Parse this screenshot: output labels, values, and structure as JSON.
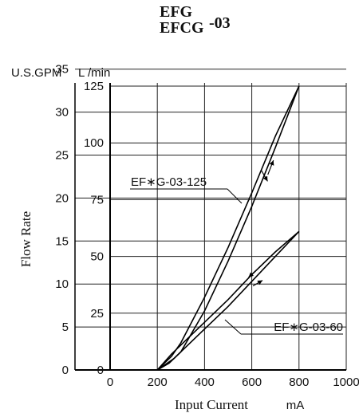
{
  "header": {
    "line1": "EFG",
    "line2": "EFCG",
    "suffix": "-03"
  },
  "chart_data": {
    "type": "line",
    "title": "",
    "xlabel": "Input Current",
    "xunit": "mA",
    "ylabel": "Flow Rate",
    "y_left_unit": "U.S.GPM",
    "y_right_unit": "L /min",
    "xlim": [
      0,
      1000
    ],
    "ylim_lpm": [
      0,
      125
    ],
    "x_ticks": [
      "0",
      "200",
      "400",
      "600",
      "800",
      "1000"
    ],
    "y_ticks_lpm": [
      "0",
      "25",
      "50",
      "75",
      "100",
      "125"
    ],
    "y_ticks_gpm": [
      "0",
      "5",
      "10",
      "15",
      "20",
      "25",
      "30",
      "35"
    ],
    "grid": true,
    "series": [
      {
        "name": "EF∗G-03-125",
        "increasing": {
          "x": [
            200,
            250,
            300,
            400,
            500,
            600,
            700,
            800
          ],
          "y": [
            0,
            3,
            8,
            26,
            48,
            72,
            98,
            125
          ]
        },
        "decreasing": {
          "x": [
            200,
            260,
            300,
            400,
            500,
            600,
            700,
            800
          ],
          "y": [
            0,
            6,
            12,
            32,
            54,
            78,
            103,
            125
          ]
        }
      },
      {
        "name": "EF∗G-03-60",
        "increasing": {
          "x": [
            200,
            270,
            300,
            400,
            500,
            600,
            700,
            800
          ],
          "y": [
            0,
            5,
            8,
            18,
            28,
            39,
            50,
            61
          ]
        },
        "decreasing": {
          "x": [
            200,
            260,
            300,
            400,
            500,
            600,
            700,
            800
          ],
          "y": [
            0,
            7,
            11,
            21,
            31,
            42,
            52,
            61
          ]
        }
      }
    ]
  }
}
